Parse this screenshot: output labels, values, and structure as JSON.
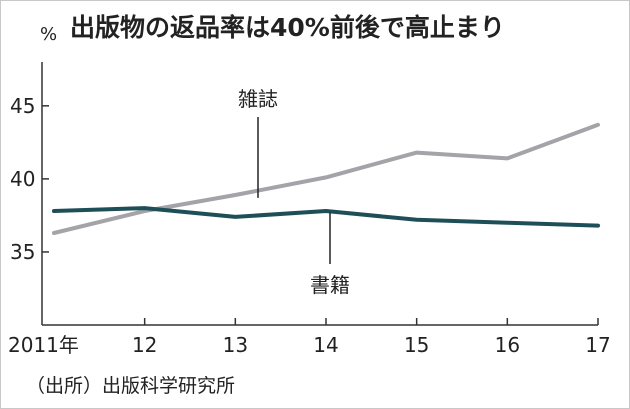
{
  "chart_data": {
    "type": "line",
    "title": "出版物の返品率は40%前後で高止まり",
    "ylabel": "%",
    "xlabel": "",
    "x": [
      "2011年",
      "12",
      "13",
      "14",
      "15",
      "16",
      "17"
    ],
    "ylim": [
      30,
      48
    ],
    "yticks": [
      35,
      40,
      45
    ],
    "grid": false,
    "series": [
      {
        "name": "雑誌",
        "values": [
          36.3,
          37.8,
          38.9,
          40.1,
          41.8,
          41.4,
          43.7
        ],
        "color": "#a3a3a8"
      },
      {
        "name": "書籍",
        "values": [
          37.8,
          38.0,
          37.4,
          37.8,
          37.2,
          37.0,
          36.8
        ],
        "color": "#1e4e57"
      }
    ],
    "source": "（出所）出版科学研究所"
  }
}
